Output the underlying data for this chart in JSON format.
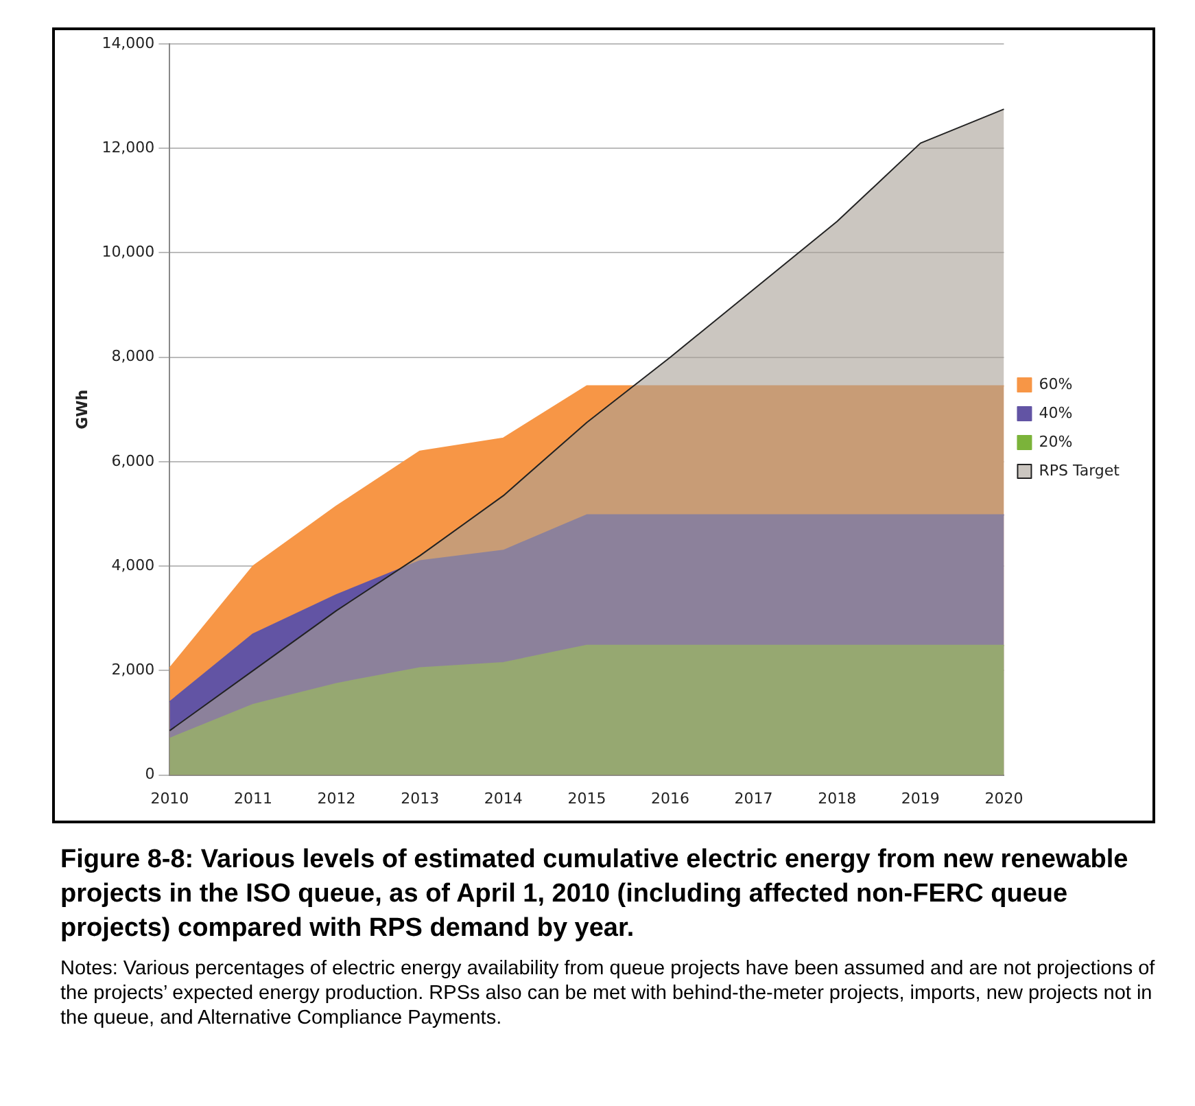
{
  "chart_data": {
    "type": "area",
    "title": "Figure 8-8: Various levels of estimated cumulative electric energy from new renewable projects in the ISO queue, as of April 1, 2010 (including affected non-FERC queue projects) compared with RPS demand by year.",
    "ylabel": "GWh",
    "categories": [
      "2010",
      "2011",
      "2012",
      "2013",
      "2014",
      "2015",
      "2016",
      "2017",
      "2018",
      "2019",
      "2020"
    ],
    "series": [
      {
        "name": "60%",
        "color": "#f79646",
        "values": [
          2050,
          4000,
          5150,
          6200,
          6450,
          7450,
          7450,
          7450,
          7450,
          7450,
          7450
        ]
      },
      {
        "name": "40%",
        "color": "#6254a4",
        "values": [
          1400,
          2700,
          3450,
          4100,
          4300,
          4980,
          4980,
          4980,
          4980,
          4980,
          4980
        ]
      },
      {
        "name": "20%",
        "color": "#7bb33a",
        "values": [
          700,
          1350,
          1750,
          2050,
          2150,
          2480,
          2480,
          2480,
          2480,
          2480,
          2480
        ]
      },
      {
        "name": "RPS Target",
        "color": "#a8a096",
        "values": [
          850,
          2000,
          3150,
          4200,
          5350,
          6750,
          8000,
          9300,
          10600,
          12100,
          12750
        ]
      }
    ],
    "ylim": [
      0,
      14000
    ],
    "yticks": [
      0,
      {
        "value": 2000,
        "label": "2,000"
      },
      {
        "value": 4000,
        "label": "4,000"
      },
      {
        "value": 6000,
        "label": "6,000"
      },
      {
        "value": 8000,
        "label": "8,000"
      },
      {
        "value": 10000,
        "label": "10,000"
      },
      {
        "value": 12000,
        "label": "12,000"
      },
      {
        "value": 14000,
        "label": "14,000"
      }
    ],
    "grid": "y",
    "legend": "right",
    "annotations": [
      "Notes: Various percentages of electric energy availability from queue projects have been assumed and are not projections of the projects’ expected energy production. RPSs also can be met with behind-the-meter projects, imports, new projects not in the queue, and Alternative Compliance Payments."
    ]
  }
}
